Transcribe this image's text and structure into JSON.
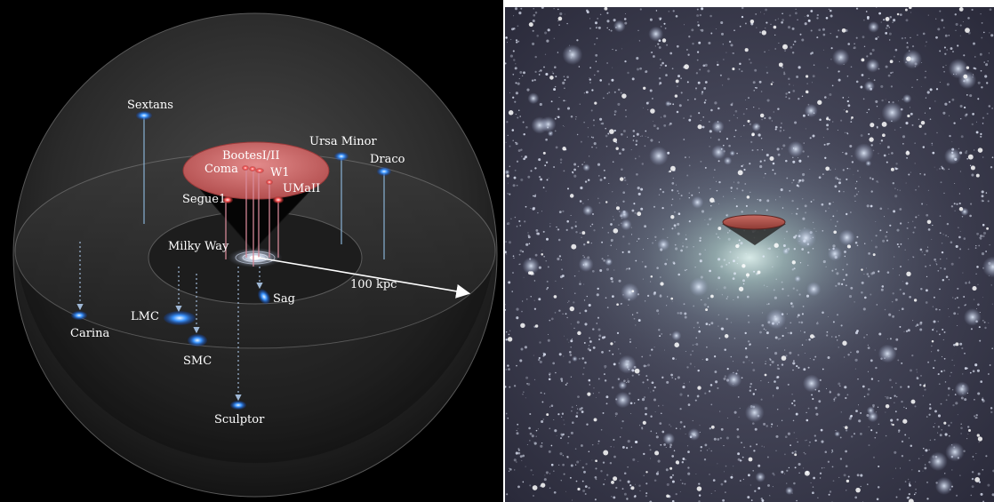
{
  "left_panel": {
    "labels": {
      "sextans": "Sextans",
      "ursa_minor": "Ursa Minor",
      "draco": "Draco",
      "bootes": "BootesI/II",
      "coma": "Coma",
      "w1": "W1",
      "umaii": "UMaII",
      "segue1": "Segue1",
      "milky_way": "Milky Way",
      "distance": "100 kpc",
      "sag": "Sag",
      "lmc": "LMC",
      "carina": "Carina",
      "smc": "SMC",
      "sculptor": "Sculptor"
    },
    "colors": {
      "satellite": "#2f8bff",
      "ultrafaint": "#ff6b6b",
      "cone": "#c45a5a"
    }
  },
  "right_panel": {
    "colors": {
      "background": "#3b3b4e",
      "halo_core": "#cfe6e2",
      "cone": "#b04a44"
    }
  }
}
